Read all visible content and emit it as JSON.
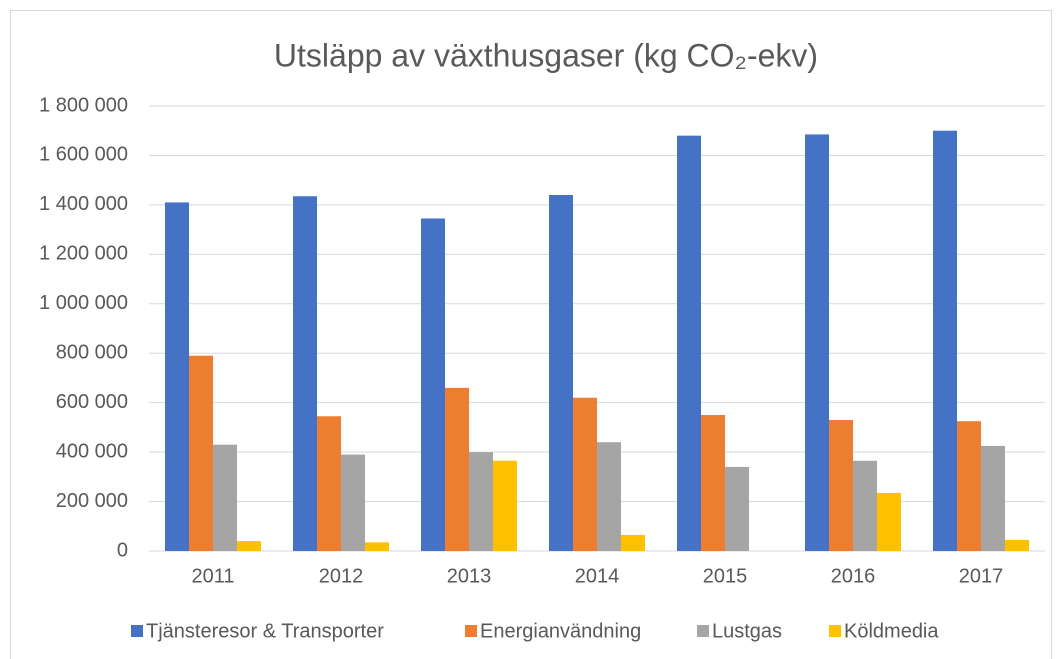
{
  "chart_data": {
    "type": "bar",
    "title": "Utsläpp av växthusgaser (kg CO₂-ekv)",
    "categories": [
      "2011",
      "2012",
      "2013",
      "2014",
      "2015",
      "2016",
      "2017"
    ],
    "series": [
      {
        "name": "Tjänsteresor & Transporter",
        "color": "#4472c4",
        "values": [
          1410000,
          1435000,
          1345000,
          1440000,
          1680000,
          1685000,
          1700000
        ]
      },
      {
        "name": "Energianvändning",
        "color": "#ed7d31",
        "values": [
          790000,
          545000,
          660000,
          620000,
          550000,
          530000,
          525000
        ]
      },
      {
        "name": "Lustgas",
        "color": "#a5a5a5",
        "values": [
          430000,
          390000,
          400000,
          440000,
          340000,
          365000,
          425000
        ]
      },
      {
        "name": "Köldmedia",
        "color": "#ffc000",
        "values": [
          40000,
          35000,
          365000,
          65000,
          0,
          235000,
          45000
        ]
      }
    ],
    "ylim": [
      0,
      1800000
    ],
    "yticks": [
      0,
      {
        "value": 200000,
        "label": "200 000"
      },
      {
        "value": 400000,
        "label": "400 000"
      },
      {
        "value": 600000,
        "label": "600 000"
      },
      {
        "value": 800000,
        "label": "800 000"
      },
      {
        "value": 1000000,
        "label": "1 000 000"
      },
      {
        "value": 1200000,
        "label": "1 200 000"
      },
      {
        "value": 1400000,
        "label": "1 400 000"
      },
      {
        "value": 1600000,
        "label": "1 600 000"
      },
      {
        "value": 1800000,
        "label": "1 800 000"
      }
    ],
    "grid": true,
    "legend": "bottom"
  }
}
